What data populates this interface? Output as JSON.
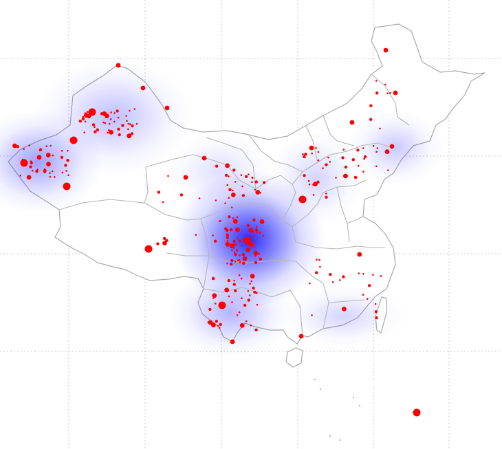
{
  "map": {
    "type": "point-density-map",
    "background": "#ffffff",
    "colors": {
      "point": "#ff0000",
      "heat_core": "#1e1eff",
      "heat_fade": "#ffffff",
      "border": "#b4b4b4",
      "grid": "#c8c8c8"
    },
    "grid": true,
    "marker_size_classes": [
      "tiny",
      "small",
      "medium",
      "large"
    ],
    "heat_clusters": [
      {
        "id": "sichuan-chongqing",
        "intensity": 1.0
      },
      {
        "id": "xinjiang-west",
        "intensity": 0.45
      },
      {
        "id": "xinjiang-north",
        "intensity": 0.3
      },
      {
        "id": "yunnan",
        "intensity": 0.35
      },
      {
        "id": "liaoning",
        "intensity": 0.25
      },
      {
        "id": "south-coast",
        "intensity": 0.2
      },
      {
        "id": "shanxi",
        "intensity": 0.2
      },
      {
        "id": "gansu",
        "intensity": 0.15
      }
    ],
    "points_by_size": {
      "tiny": 170,
      "small": 90,
      "medium": 40,
      "large": 9
    }
  }
}
